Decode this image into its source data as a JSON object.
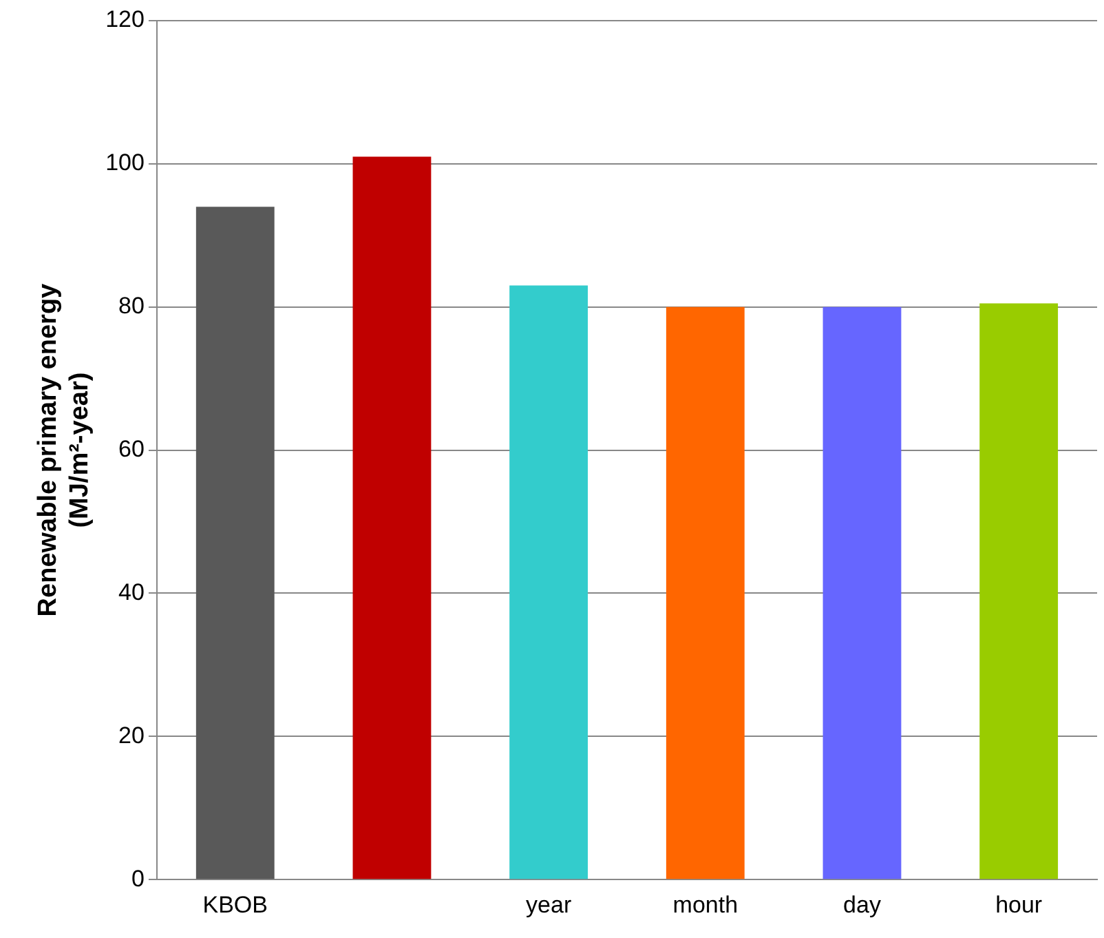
{
  "chart_data": {
    "type": "bar",
    "ylabel": "Renewable primary energy\n(MJ/m²-year)",
    "categories": [
      "KBOB",
      null,
      "year",
      "month",
      "day",
      "hour"
    ],
    "values": [
      94,
      101,
      83,
      80,
      80,
      80.5
    ],
    "colors": [
      "#595959",
      "#c00000",
      "#33cccc",
      "#ff6600",
      "#6666ff",
      "#99cc00"
    ],
    "ylim": [
      0,
      120
    ],
    "yticks": [
      0,
      20,
      40,
      60,
      80,
      100,
      120
    ],
    "grid": "y",
    "legend": false
  }
}
